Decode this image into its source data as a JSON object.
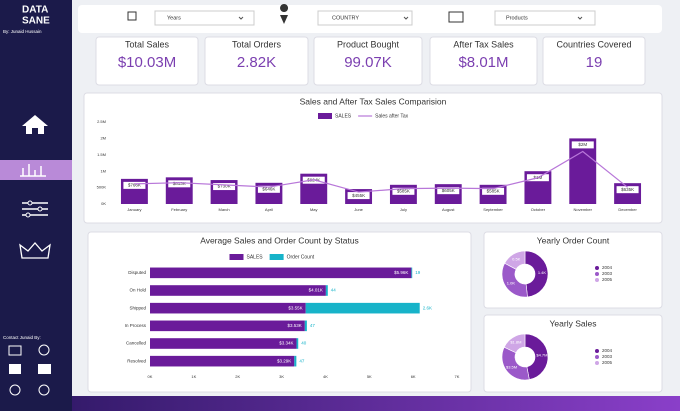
{
  "sidebar": {
    "logo": [
      "DATA",
      "SANE"
    ],
    "author": "By: Junaid Hussain",
    "contact": "Contact Junaid By:"
  },
  "filters": [
    "Years",
    "COUNTRY",
    "Products"
  ],
  "kpis": [
    {
      "label": "Total Sales",
      "value": "$10.03M"
    },
    {
      "label": "Total Orders",
      "value": "2.82K"
    },
    {
      "label": "Product Bought",
      "value": "99.07K"
    },
    {
      "label": "After Tax Sales",
      "value": "$8.01M"
    },
    {
      "label": "Countries Covered",
      "value": "19"
    }
  ],
  "chart_data": [
    {
      "type": "bar",
      "title": "Sales and After Tax Sales Comparision",
      "categories": [
        "January",
        "February",
        "March",
        "April",
        "May",
        "June",
        "July",
        "August",
        "September",
        "October",
        "November",
        "December"
      ],
      "series": [
        {
          "name": "SALES",
          "color": "#6a1b9a",
          "values": [
            766000,
            813000,
            730000,
            646000,
            924000,
            455000,
            585000,
            605000,
            585000,
            1000000,
            2000000,
            635000
          ],
          "value_labels": [
            "$766K",
            "$813K",
            "$730K",
            "$646K",
            "$924K",
            "$455K",
            "$585K",
            "$605K",
            "$585K",
            "$1M",
            "$2M",
            "$635K"
          ]
        },
        {
          "name": "Sales after Tax",
          "color": "#b877d9",
          "mark": "line",
          "values": [
            613000,
            650000,
            584000,
            517000,
            739000,
            364000,
            468000,
            484000,
            468000,
            800000,
            1600000,
            508000
          ]
        }
      ],
      "ylim": [
        0,
        2500000
      ],
      "yticks": [
        {
          "value": 0,
          "label": "0K"
        },
        {
          "value": 500000,
          "label": "500K"
        },
        {
          "value": 1000000,
          "label": "1M"
        },
        {
          "value": 1500000,
          "label": "1.5M"
        },
        {
          "value": 2000000,
          "label": "2M"
        },
        {
          "value": 2500000,
          "label": "2.5M"
        }
      ],
      "grid": false,
      "legend": "top"
    },
    {
      "type": "hbar",
      "title": "Average Sales and Order Count by Status",
      "categories": [
        "Disputed",
        "On Hold",
        "Shipped",
        "In Process",
        "Cancelled",
        "Resolved"
      ],
      "series": [
        {
          "name": "SALES",
          "color": "#6a1b9a",
          "values": [
            5960,
            4010,
            3550,
            3530,
            3340,
            3290
          ],
          "value_labels": [
            "$5.96K",
            "$4.01K",
            "$3.55K",
            "$3.53K",
            "$3.34K",
            "$3.29K"
          ]
        },
        {
          "name": "Order Count",
          "color": "#17b3c9",
          "axis": "x2",
          "values": [
            19,
            44,
            2600,
            47,
            40,
            47
          ],
          "value_labels": [
            "19",
            "44",
            "2.6K",
            "47",
            "40",
            "47"
          ]
        }
      ],
      "xlim": [
        0,
        7000
      ],
      "xticks": [
        {
          "value": 0,
          "label": "0K"
        },
        {
          "value": 1000,
          "label": "1K"
        },
        {
          "value": 2000,
          "label": "2K"
        },
        {
          "value": 3000,
          "label": "3K"
        },
        {
          "value": 4000,
          "label": "4K"
        },
        {
          "value": 5000,
          "label": "5K"
        },
        {
          "value": 6000,
          "label": "6K"
        },
        {
          "value": 7000,
          "label": "7K"
        }
      ],
      "x2lim": [
        0,
        7000
      ],
      "grid": false,
      "legend": "top"
    },
    {
      "type": "pie",
      "title": "Yearly Order Count",
      "categories": [
        "2004",
        "2003",
        "2005"
      ],
      "values": [
        1400,
        1000,
        500
      ],
      "value_labels": [
        "1.4K",
        "1.0K",
        "0.5K"
      ],
      "colors": [
        "#6a1b9a",
        "#9b59c9",
        "#cfa6e6"
      ],
      "legend": "right"
    },
    {
      "type": "pie",
      "title": "Yearly Sales",
      "categories": [
        "2004",
        "2003",
        "2005"
      ],
      "values": [
        4700000,
        3500000,
        1800000
      ],
      "value_labels": [
        "$4.7M",
        "$3.5M",
        "$1.8M"
      ],
      "colors": [
        "#6a1b9a",
        "#9b59c9",
        "#cfa6e6"
      ],
      "legend": "right"
    }
  ]
}
